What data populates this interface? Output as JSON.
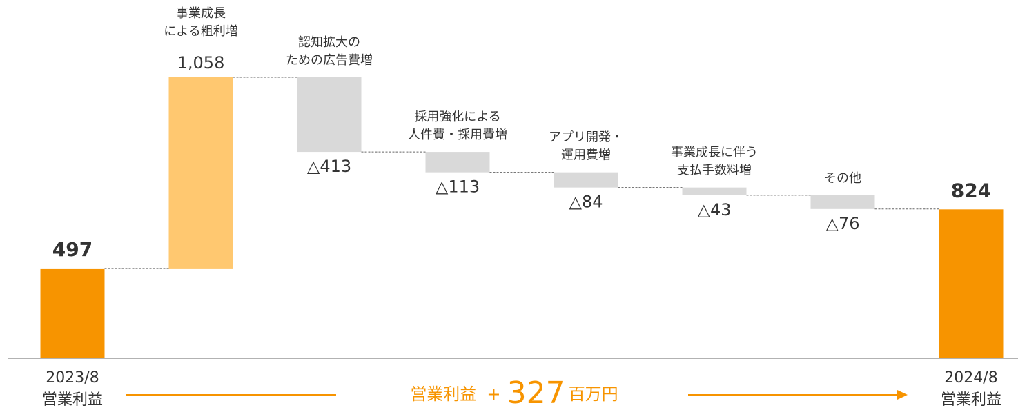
{
  "chart_data": {
    "type": "waterfall",
    "categories": [
      [
        "2023/8",
        "営業利益"
      ],
      [
        "事業成長",
        "による粗利増"
      ],
      [
        "認知拡大の",
        "ための広告費増"
      ],
      [
        "採用強化による",
        "人件費・採用費増"
      ],
      [
        "アプリ開発・",
        "運用費増"
      ],
      [
        "事業成長に伴う",
        "支払手数料増"
      ],
      [
        "その他"
      ],
      [
        "2024/8",
        "営業利益"
      ]
    ],
    "values": [
      497,
      1058,
      -413,
      -113,
      -84,
      -43,
      -76,
      824
    ],
    "value_labels": [
      "497",
      "1,058",
      "△413",
      "△113",
      "△84",
      "△43",
      "△76",
      "824"
    ],
    "colors": [
      "#f79400",
      "#ffc870",
      "#d9d9d9",
      "#d9d9d9",
      "#d9d9d9",
      "#d9d9d9",
      "#d9d9d9",
      "#f79400"
    ],
    "annotation": {
      "label": "営業利益",
      "sign": "+",
      "value": 327,
      "unit": "百万円",
      "color": "#f79400"
    }
  }
}
